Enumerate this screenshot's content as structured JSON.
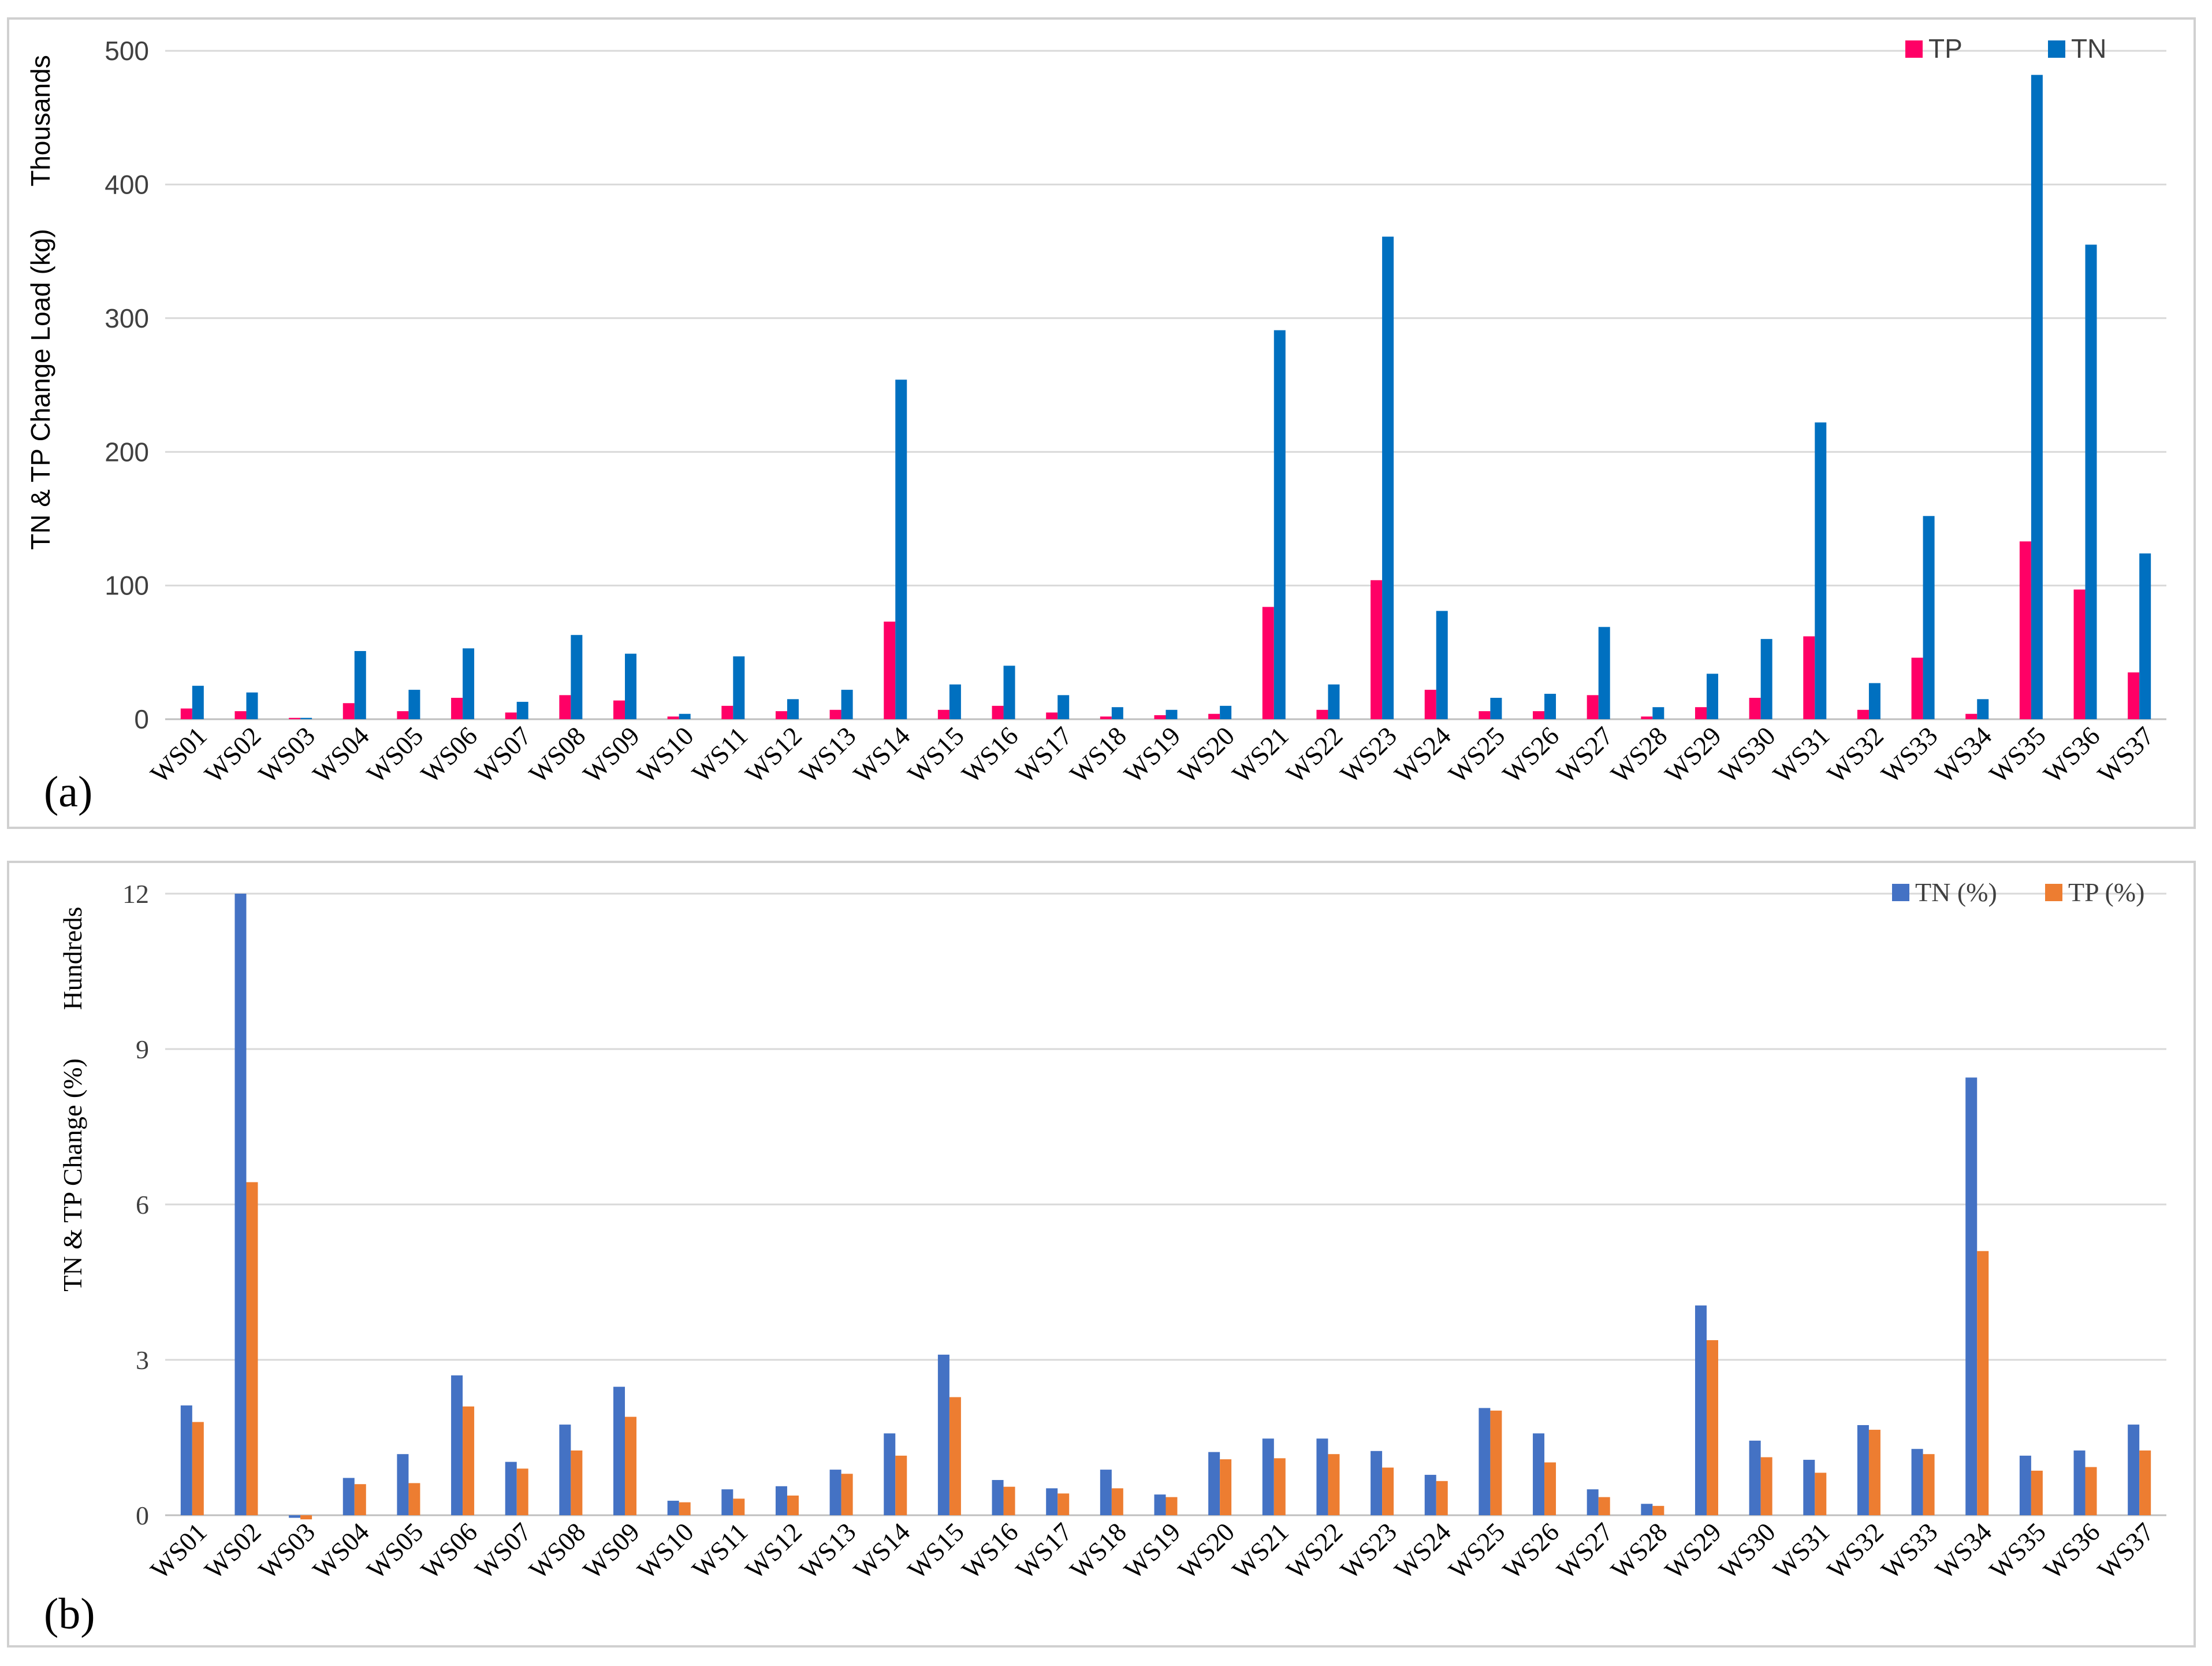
{
  "chart_data": [
    {
      "panel_label": "(a)",
      "type": "bar",
      "ylabel": "TN & TP Change Load (kg)",
      "unit_label": "Thousands",
      "ylim": [
        0,
        500
      ],
      "yticks": [
        "0",
        "100",
        "200",
        "300",
        "400",
        "500"
      ],
      "grid": true,
      "legend_position": "top-right",
      "categories": [
        "WS01",
        "WS02",
        "WS03",
        "WS04",
        "WS05",
        "WS06",
        "WS07",
        "WS08",
        "WS09",
        "WS10",
        "WS11",
        "WS12",
        "WS13",
        "WS14",
        "WS15",
        "WS16",
        "WS17",
        "WS18",
        "WS19",
        "WS20",
        "WS21",
        "WS22",
        "WS23",
        "WS24",
        "WS25",
        "WS26",
        "WS27",
        "WS28",
        "WS29",
        "WS30",
        "WS31",
        "WS32",
        "WS33",
        "WS34",
        "WS35",
        "WS36",
        "WS37"
      ],
      "series": [
        {
          "name": "TP",
          "color": "#ff0066",
          "values": [
            8,
            6,
            1,
            12,
            6,
            16,
            5,
            18,
            14,
            2,
            10,
            6,
            7,
            73,
            7,
            10,
            5,
            2,
            3,
            4,
            84,
            7,
            104,
            22,
            6,
            6,
            18,
            2,
            9,
            16,
            62,
            7,
            46,
            4,
            133,
            97,
            35
          ]
        },
        {
          "name": "TN",
          "color": "#0070c0",
          "values": [
            25,
            20,
            1,
            51,
            22,
            53,
            13,
            63,
            49,
            4,
            47,
            15,
            22,
            254,
            26,
            40,
            18,
            9,
            7,
            10,
            291,
            26,
            361,
            81,
            16,
            19,
            69,
            9,
            34,
            60,
            222,
            27,
            152,
            15,
            482,
            355,
            124
          ]
        }
      ]
    },
    {
      "panel_label": "(b)",
      "type": "bar",
      "ylabel": "TN & TP Change (%)",
      "unit_label": "Hundreds",
      "ylim": [
        0,
        12
      ],
      "yticks": [
        "0",
        "3",
        "6",
        "9",
        "12"
      ],
      "grid": true,
      "legend_position": "top-right",
      "categories": [
        "WS01",
        "WS02",
        "WS03",
        "WS04",
        "WS05",
        "WS06",
        "WS07",
        "WS08",
        "WS09",
        "WS10",
        "WS11",
        "WS12",
        "WS13",
        "WS14",
        "WS15",
        "WS16",
        "WS17",
        "WS18",
        "WS19",
        "WS20",
        "WS21",
        "WS22",
        "WS23",
        "WS24",
        "WS25",
        "WS26",
        "WS27",
        "WS28",
        "WS29",
        "WS30",
        "WS31",
        "WS32",
        "WS33",
        "WS34",
        "WS35",
        "WS36",
        "WS37"
      ],
      "series": [
        {
          "name": "TN (%)",
          "color": "#4472c4",
          "values": [
            2.12,
            12.0,
            -0.05,
            0.72,
            1.18,
            2.7,
            1.03,
            1.75,
            2.48,
            0.28,
            0.5,
            0.56,
            0.88,
            1.58,
            3.1,
            0.68,
            0.52,
            0.88,
            0.4,
            1.22,
            1.48,
            1.48,
            1.24,
            0.78,
            2.07,
            1.58,
            0.5,
            0.22,
            4.05,
            1.44,
            1.07,
            1.74,
            1.28,
            8.45,
            1.15,
            1.25,
            1.75
          ]
        },
        {
          "name": "TP (%)",
          "color": "#ed7d31",
          "values": [
            1.8,
            6.43,
            -0.08,
            0.6,
            0.62,
            2.1,
            0.9,
            1.25,
            1.9,
            0.25,
            0.32,
            0.38,
            0.8,
            1.15,
            2.28,
            0.55,
            0.42,
            0.52,
            0.35,
            1.08,
            1.1,
            1.18,
            0.92,
            0.66,
            2.02,
            1.02,
            0.35,
            0.18,
            3.38,
            1.12,
            0.82,
            1.65,
            1.18,
            5.1,
            0.86,
            0.93,
            1.25
          ]
        }
      ]
    }
  ]
}
